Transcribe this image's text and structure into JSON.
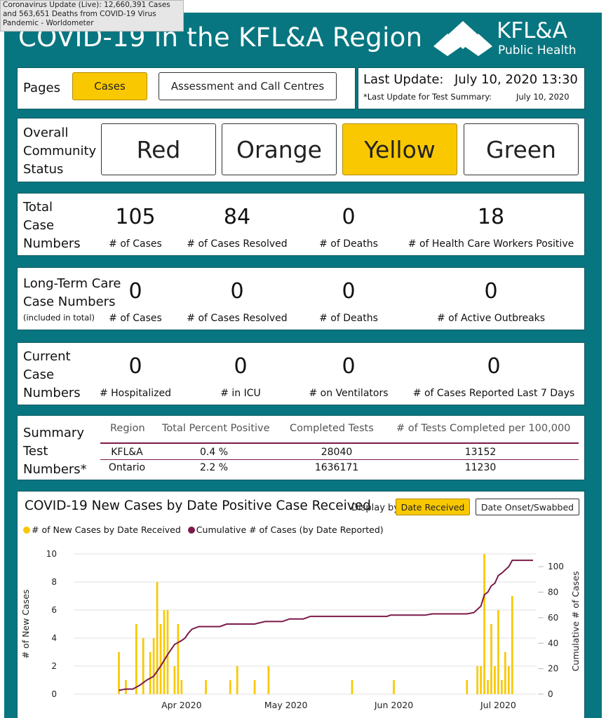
{
  "tooltip": "Coronavirus Update (Live): 12,660,391 Cases and 563,651 Deaths from COVID-19 Virus Pandemic - Worldometer",
  "header": {
    "title": "COVID-19 in the KFL&A Region",
    "logo_line1": "KFL&A",
    "logo_line2": "Public Health"
  },
  "pages": {
    "label": "Pages",
    "buttons": [
      "Cases",
      "Assessment and Call Centres"
    ],
    "active": "Cases"
  },
  "update": {
    "label": "Last Update:",
    "value": "July 10, 2020 13:30",
    "test_label": "*Last Update for Test Summary:",
    "test_value": "July 10, 2020"
  },
  "community": {
    "label": [
      "Overall",
      "Community",
      "Status"
    ],
    "levels": [
      "Red",
      "Orange",
      "Yellow",
      "Green"
    ],
    "active": "Yellow"
  },
  "total": {
    "label": [
      "Total",
      "Case",
      "Numbers"
    ],
    "stats": [
      {
        "value": "105",
        "label": "# of Cases"
      },
      {
        "value": "84",
        "label": "# of Cases Resolved"
      },
      {
        "value": "0",
        "label": "# of Deaths"
      },
      {
        "value": "18",
        "label": "# of Health Care Workers Positive"
      }
    ]
  },
  "ltc": {
    "label": [
      "Long-Term Care",
      "Case Numbers"
    ],
    "note": "(included in total)",
    "stats": [
      {
        "value": "0",
        "label": "# of Cases"
      },
      {
        "value": "0",
        "label": "# of Cases Resolved"
      },
      {
        "value": "0",
        "label": "# of Deaths"
      },
      {
        "value": "0",
        "label": "# of Active Outbreaks"
      }
    ]
  },
  "current": {
    "label": [
      "Current",
      "Case",
      "Numbers"
    ],
    "stats": [
      {
        "value": "0",
        "label": "# Hospitalized"
      },
      {
        "value": "0",
        "label": "# in ICU"
      },
      {
        "value": "0",
        "label": "# on Ventilators"
      },
      {
        "value": "0",
        "label": "# of Cases Reported Last 7 Days"
      }
    ]
  },
  "summary": {
    "label": [
      "Summary",
      "Test",
      "Numbers*"
    ],
    "headers": [
      "Region",
      "Total Percent Positive",
      "Completed Tests",
      "# of Tests Completed per 100,000"
    ],
    "rows": [
      [
        "KFL&A",
        "0.4 %",
        "28040",
        "13152"
      ],
      [
        "Ontario",
        "2.2 %",
        "1636171",
        "11230"
      ]
    ]
  },
  "chart": {
    "title": "COVID-19 New Cases by Date Positive Case Received",
    "display_by_label": "Display by:",
    "display_options": [
      "Date Received",
      "Date Onset/Swabbed"
    ],
    "active_option": "Date Received"
  },
  "colors": {
    "teal": "#087680",
    "yellow": "#f9c800",
    "maroon": "#7b1a4a"
  },
  "chart_data": {
    "type": "bar+line",
    "title": "COVID-19 New Cases by Date Positive Case Received",
    "ylabel": "# of New Cases",
    "y2label": "Cumulative # of Cases",
    "ylim": [
      0,
      10
    ],
    "y2lim": [
      0,
      110
    ],
    "yticks": [
      0,
      2,
      4,
      6,
      8,
      10
    ],
    "y2ticks": [
      0,
      20,
      40,
      60,
      80,
      100
    ],
    "x_start": "2020-03-01",
    "x_end": "2020-07-12",
    "xticks": [
      {
        "date": "2020-04-01",
        "label": "Apr 2020"
      },
      {
        "date": "2020-05-01",
        "label": "May 2020"
      },
      {
        "date": "2020-06-01",
        "label": "Jun 2020"
      },
      {
        "date": "2020-07-01",
        "label": "Jul 2020"
      }
    ],
    "legend_position": "top-left",
    "series": [
      {
        "name": "# of New Cases by Date Received",
        "type": "bar",
        "color": "#f9c800",
        "points": [
          [
            "2020-03-14",
            3
          ],
          [
            "2020-03-16",
            1
          ],
          [
            "2020-03-19",
            5
          ],
          [
            "2020-03-21",
            4
          ],
          [
            "2020-03-23",
            3
          ],
          [
            "2020-03-24",
            4
          ],
          [
            "2020-03-25",
            8
          ],
          [
            "2020-03-26",
            5
          ],
          [
            "2020-03-27",
            6
          ],
          [
            "2020-03-28",
            6
          ],
          [
            "2020-03-30",
            2
          ],
          [
            "2020-03-31",
            5
          ],
          [
            "2020-04-01",
            1
          ],
          [
            "2020-04-08",
            1
          ],
          [
            "2020-04-15",
            1
          ],
          [
            "2020-04-17",
            2
          ],
          [
            "2020-04-22",
            1
          ],
          [
            "2020-04-26",
            2
          ],
          [
            "2020-05-20",
            1
          ],
          [
            "2020-06-01",
            1
          ],
          [
            "2020-06-22",
            1
          ],
          [
            "2020-06-25",
            2
          ],
          [
            "2020-06-26",
            2
          ],
          [
            "2020-06-27",
            10
          ],
          [
            "2020-06-28",
            1
          ],
          [
            "2020-06-29",
            5
          ],
          [
            "2020-06-30",
            2
          ],
          [
            "2020-07-01",
            6
          ],
          [
            "2020-07-02",
            1
          ],
          [
            "2020-07-03",
            3
          ],
          [
            "2020-07-04",
            2
          ],
          [
            "2020-07-05",
            7
          ]
        ]
      },
      {
        "name": "Cumulative # of Cases (by Date Reported)",
        "type": "line",
        "color": "#7b1a4a",
        "points": [
          [
            "2020-03-14",
            3
          ],
          [
            "2020-03-16",
            4
          ],
          [
            "2020-03-18",
            4
          ],
          [
            "2020-03-20",
            7
          ],
          [
            "2020-03-22",
            11
          ],
          [
            "2020-03-24",
            14
          ],
          [
            "2020-03-26",
            22
          ],
          [
            "2020-03-28",
            31
          ],
          [
            "2020-03-30",
            39
          ],
          [
            "2020-04-01",
            42
          ],
          [
            "2020-04-02",
            44
          ],
          [
            "2020-04-03",
            48
          ],
          [
            "2020-04-04",
            51
          ],
          [
            "2020-04-06",
            53
          ],
          [
            "2020-04-12",
            53
          ],
          [
            "2020-04-14",
            55
          ],
          [
            "2020-04-22",
            55
          ],
          [
            "2020-04-25",
            57
          ],
          [
            "2020-04-30",
            57
          ],
          [
            "2020-05-02",
            59
          ],
          [
            "2020-05-06",
            59
          ],
          [
            "2020-05-08",
            61
          ],
          [
            "2020-05-30",
            61
          ],
          [
            "2020-05-31",
            62
          ],
          [
            "2020-06-10",
            62
          ],
          [
            "2020-06-12",
            63
          ],
          [
            "2020-06-22",
            63
          ],
          [
            "2020-06-24",
            64
          ],
          [
            "2020-06-26",
            69
          ],
          [
            "2020-06-27",
            78
          ],
          [
            "2020-06-28",
            80
          ],
          [
            "2020-06-29",
            85
          ],
          [
            "2020-06-30",
            87
          ],
          [
            "2020-07-01",
            93
          ],
          [
            "2020-07-02",
            95
          ],
          [
            "2020-07-04",
            100
          ],
          [
            "2020-07-05",
            105
          ],
          [
            "2020-07-11",
            105
          ]
        ]
      }
    ]
  }
}
